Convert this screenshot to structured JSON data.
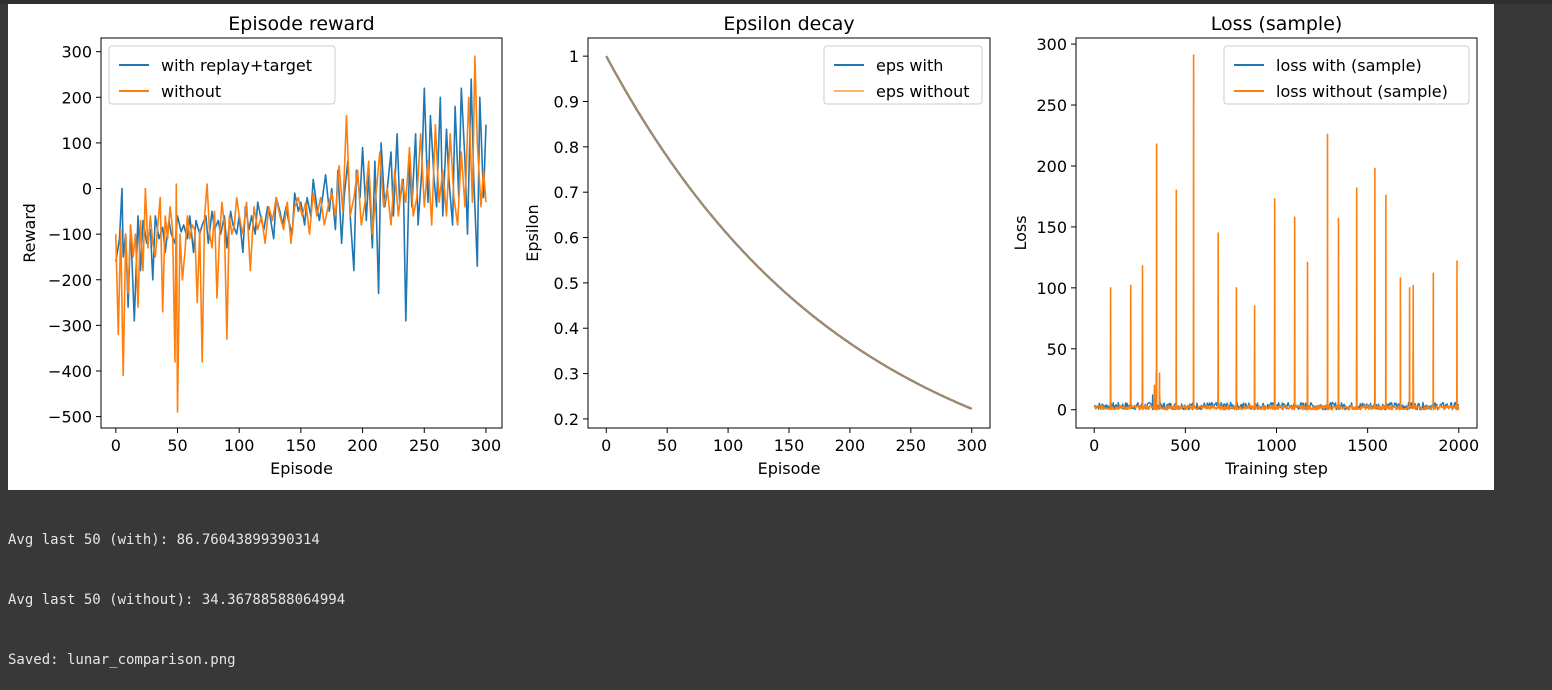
{
  "output": {
    "lines": [
      "Avg last 50 (with): 86.76043899390314",
      "Avg last 50 (without): 34.36788588064994",
      "Saved: lunar_comparison.png"
    ]
  },
  "colors": {
    "blue": "#1f77b4",
    "orange": "#ff7f0e",
    "light_orange": "#ffb26b",
    "eps_overlap": "#a2876a"
  },
  "chart_data": [
    {
      "type": "line",
      "title": "Episode reward",
      "xlabel": "Episode",
      "ylabel": "Reward",
      "xlim": [
        -12,
        313
      ],
      "ylim": [
        -525,
        330
      ],
      "xticks": [
        0,
        50,
        100,
        150,
        200,
        250,
        300
      ],
      "yticks": [
        -500,
        -400,
        -300,
        -200,
        -100,
        0,
        100,
        200,
        300
      ],
      "legend": "upper-left",
      "series": [
        {
          "name": "with replay+target",
          "color": "#1f77b4",
          "x": [
            0,
            3,
            5,
            6,
            8,
            10,
            12,
            15,
            18,
            20,
            22,
            25,
            28,
            30,
            32,
            35,
            38,
            40,
            43,
            45,
            48,
            50,
            53,
            55,
            58,
            60,
            63,
            65,
            68,
            70,
            73,
            75,
            78,
            80,
            83,
            85,
            88,
            90,
            93,
            95,
            98,
            100,
            103,
            105,
            108,
            110,
            113,
            115,
            118,
            120,
            123,
            125,
            128,
            130,
            133,
            135,
            138,
            140,
            143,
            145,
            148,
            150,
            153,
            155,
            158,
            160,
            163,
            165,
            168,
            170,
            173,
            175,
            178,
            180,
            183,
            185,
            188,
            190,
            193,
            195,
            198,
            200,
            203,
            205,
            208,
            210,
            213,
            215,
            218,
            220,
            223,
            225,
            228,
            230,
            233,
            235,
            238,
            240,
            243,
            245,
            248,
            250,
            253,
            255,
            258,
            260,
            263,
            265,
            268,
            270,
            273,
            275,
            278,
            280,
            283,
            285,
            288,
            290,
            293,
            295,
            298,
            300
          ],
          "y": [
            -160,
            -110,
            0,
            -150,
            -100,
            -260,
            -80,
            -290,
            -60,
            -180,
            -70,
            -120,
            -90,
            -200,
            -60,
            -110,
            -85,
            -140,
            -70,
            -100,
            -120,
            -60,
            -95,
            -80,
            -110,
            -60,
            -140,
            -70,
            -100,
            -80,
            -60,
            -120,
            -50,
            -90,
            -70,
            -100,
            -60,
            -130,
            -50,
            -80,
            -100,
            -60,
            -140,
            -40,
            -90,
            -60,
            -100,
            -30,
            -70,
            -90,
            -40,
            -60,
            -110,
            -20,
            -50,
            -80,
            -40,
            -70,
            -100,
            -10,
            -50,
            -30,
            -80,
            -20,
            -60,
            20,
            -40,
            -70,
            -10,
            30,
            -50,
            0,
            -90,
            40,
            -120,
            -20,
            60,
            -60,
            -180,
            40,
            -20,
            90,
            -70,
            30,
            -130,
            60,
            -230,
            100,
            -40,
            0,
            80,
            -60,
            120,
            -30,
            20,
            -290,
            60,
            -40,
            120,
            -80,
            40,
            220,
            -30,
            160,
            20,
            -40,
            200,
            -60,
            130,
            20,
            -80,
            180,
            -20,
            220,
            60,
            -100,
            240,
            30,
            -170,
            200,
            -20,
            140
          ]
        },
        {
          "name": "without",
          "color": "#ff7f0e",
          "x": [
            0,
            2,
            4,
            6,
            8,
            10,
            12,
            14,
            16,
            18,
            20,
            22,
            24,
            26,
            28,
            30,
            32,
            34,
            36,
            38,
            40,
            42,
            44,
            46,
            48,
            49,
            50,
            52,
            54,
            56,
            58,
            60,
            62,
            64,
            66,
            68,
            70,
            72,
            74,
            76,
            78,
            80,
            82,
            84,
            86,
            88,
            90,
            92,
            94,
            96,
            98,
            100,
            103,
            106,
            109,
            112,
            115,
            118,
            121,
            124,
            127,
            130,
            133,
            136,
            139,
            142,
            145,
            148,
            151,
            154,
            157,
            160,
            163,
            166,
            169,
            172,
            175,
            178,
            181,
            184,
            187,
            190,
            193,
            196,
            199,
            202,
            205,
            208,
            211,
            214,
            217,
            220,
            223,
            226,
            229,
            232,
            235,
            238,
            241,
            244,
            247,
            250,
            253,
            256,
            259,
            262,
            265,
            268,
            271,
            274,
            277,
            280,
            283,
            286,
            289,
            291,
            293,
            296,
            298,
            300
          ],
          "y": [
            -100,
            -320,
            -90,
            -410,
            -100,
            -230,
            -80,
            -150,
            -100,
            -260,
            -70,
            -180,
            0,
            -130,
            -60,
            -120,
            -150,
            -80,
            -20,
            -270,
            -60,
            -110,
            -40,
            -90,
            -380,
            10,
            -490,
            -100,
            -200,
            -140,
            -60,
            -110,
            -80,
            -90,
            -250,
            -90,
            -380,
            -60,
            10,
            -100,
            -130,
            -50,
            -240,
            -110,
            -30,
            -80,
            -330,
            -60,
            -100,
            -80,
            -20,
            -60,
            -100,
            -30,
            -180,
            -40,
            -90,
            -60,
            -120,
            -40,
            -70,
            -20,
            -60,
            -90,
            -30,
            -120,
            -40,
            -20,
            -60,
            -30,
            -100,
            -10,
            -60,
            -20,
            -80,
            -40,
            -10,
            -60,
            50,
            -50,
            160,
            -60,
            -20,
            40,
            -80,
            -30,
            60,
            -100,
            -10,
            80,
            -40,
            0,
            -80,
            40,
            -60,
            20,
            -30,
            90,
            -60,
            -20,
            120,
            -40,
            60,
            -80,
            140,
            -30,
            40,
            -60,
            120,
            -20,
            -80,
            80,
            -40,
            200,
            -30,
            290,
            100,
            -40,
            40,
            -30
          ]
        }
      ]
    },
    {
      "type": "line",
      "title": "Epsilon decay",
      "xlabel": "Episode",
      "ylabel": "Epsilon",
      "xlim": [
        -15,
        315
      ],
      "ylim": [
        0.18,
        1.04
      ],
      "xticks": [
        0,
        50,
        100,
        150,
        200,
        250,
        300
      ],
      "yticks": [
        0.2,
        0.3,
        0.4,
        0.5,
        0.6,
        0.7,
        0.8,
        0.9,
        1.0
      ],
      "legend": "upper-right",
      "series": [
        {
          "name": "eps with",
          "color": "#1f77b4",
          "start": 1.0,
          "decay": 0.995,
          "episodes": 300
        },
        {
          "name": "eps without",
          "color": "#ffb26b",
          "start": 1.0,
          "decay": 0.995,
          "episodes": 300
        }
      ]
    },
    {
      "type": "line",
      "title": "Loss (sample)",
      "xlabel": "Training step",
      "ylabel": "Loss",
      "xlim": [
        -100,
        2100
      ],
      "ylim": [
        -15,
        305
      ],
      "xticks": [
        0,
        500,
        1000,
        1500,
        2000
      ],
      "yticks": [
        0,
        50,
        100,
        150,
        200,
        250,
        300
      ],
      "legend": "upper-right",
      "baseline_max": 6,
      "spikes_with": [
        [
          320,
          12
        ],
        [
          340,
          30
        ],
        [
          360,
          10
        ],
        [
          450,
          8
        ],
        [
          880,
          6
        ],
        [
          1300,
          5
        ],
        [
          1600,
          4
        ]
      ],
      "spikes_without": [
        [
          90,
          100
        ],
        [
          200,
          102
        ],
        [
          265,
          118
        ],
        [
          330,
          20
        ],
        [
          342,
          218
        ],
        [
          358,
          30
        ],
        [
          450,
          180
        ],
        [
          545,
          291
        ],
        [
          680,
          145
        ],
        [
          780,
          100
        ],
        [
          880,
          85
        ],
        [
          990,
          173
        ],
        [
          1100,
          158
        ],
        [
          1170,
          121
        ],
        [
          1280,
          226
        ],
        [
          1340,
          157
        ],
        [
          1440,
          182
        ],
        [
          1540,
          198
        ],
        [
          1600,
          176
        ],
        [
          1680,
          108
        ],
        [
          1730,
          100
        ],
        [
          1750,
          102
        ],
        [
          1860,
          112
        ],
        [
          1990,
          122
        ]
      ]
    }
  ]
}
